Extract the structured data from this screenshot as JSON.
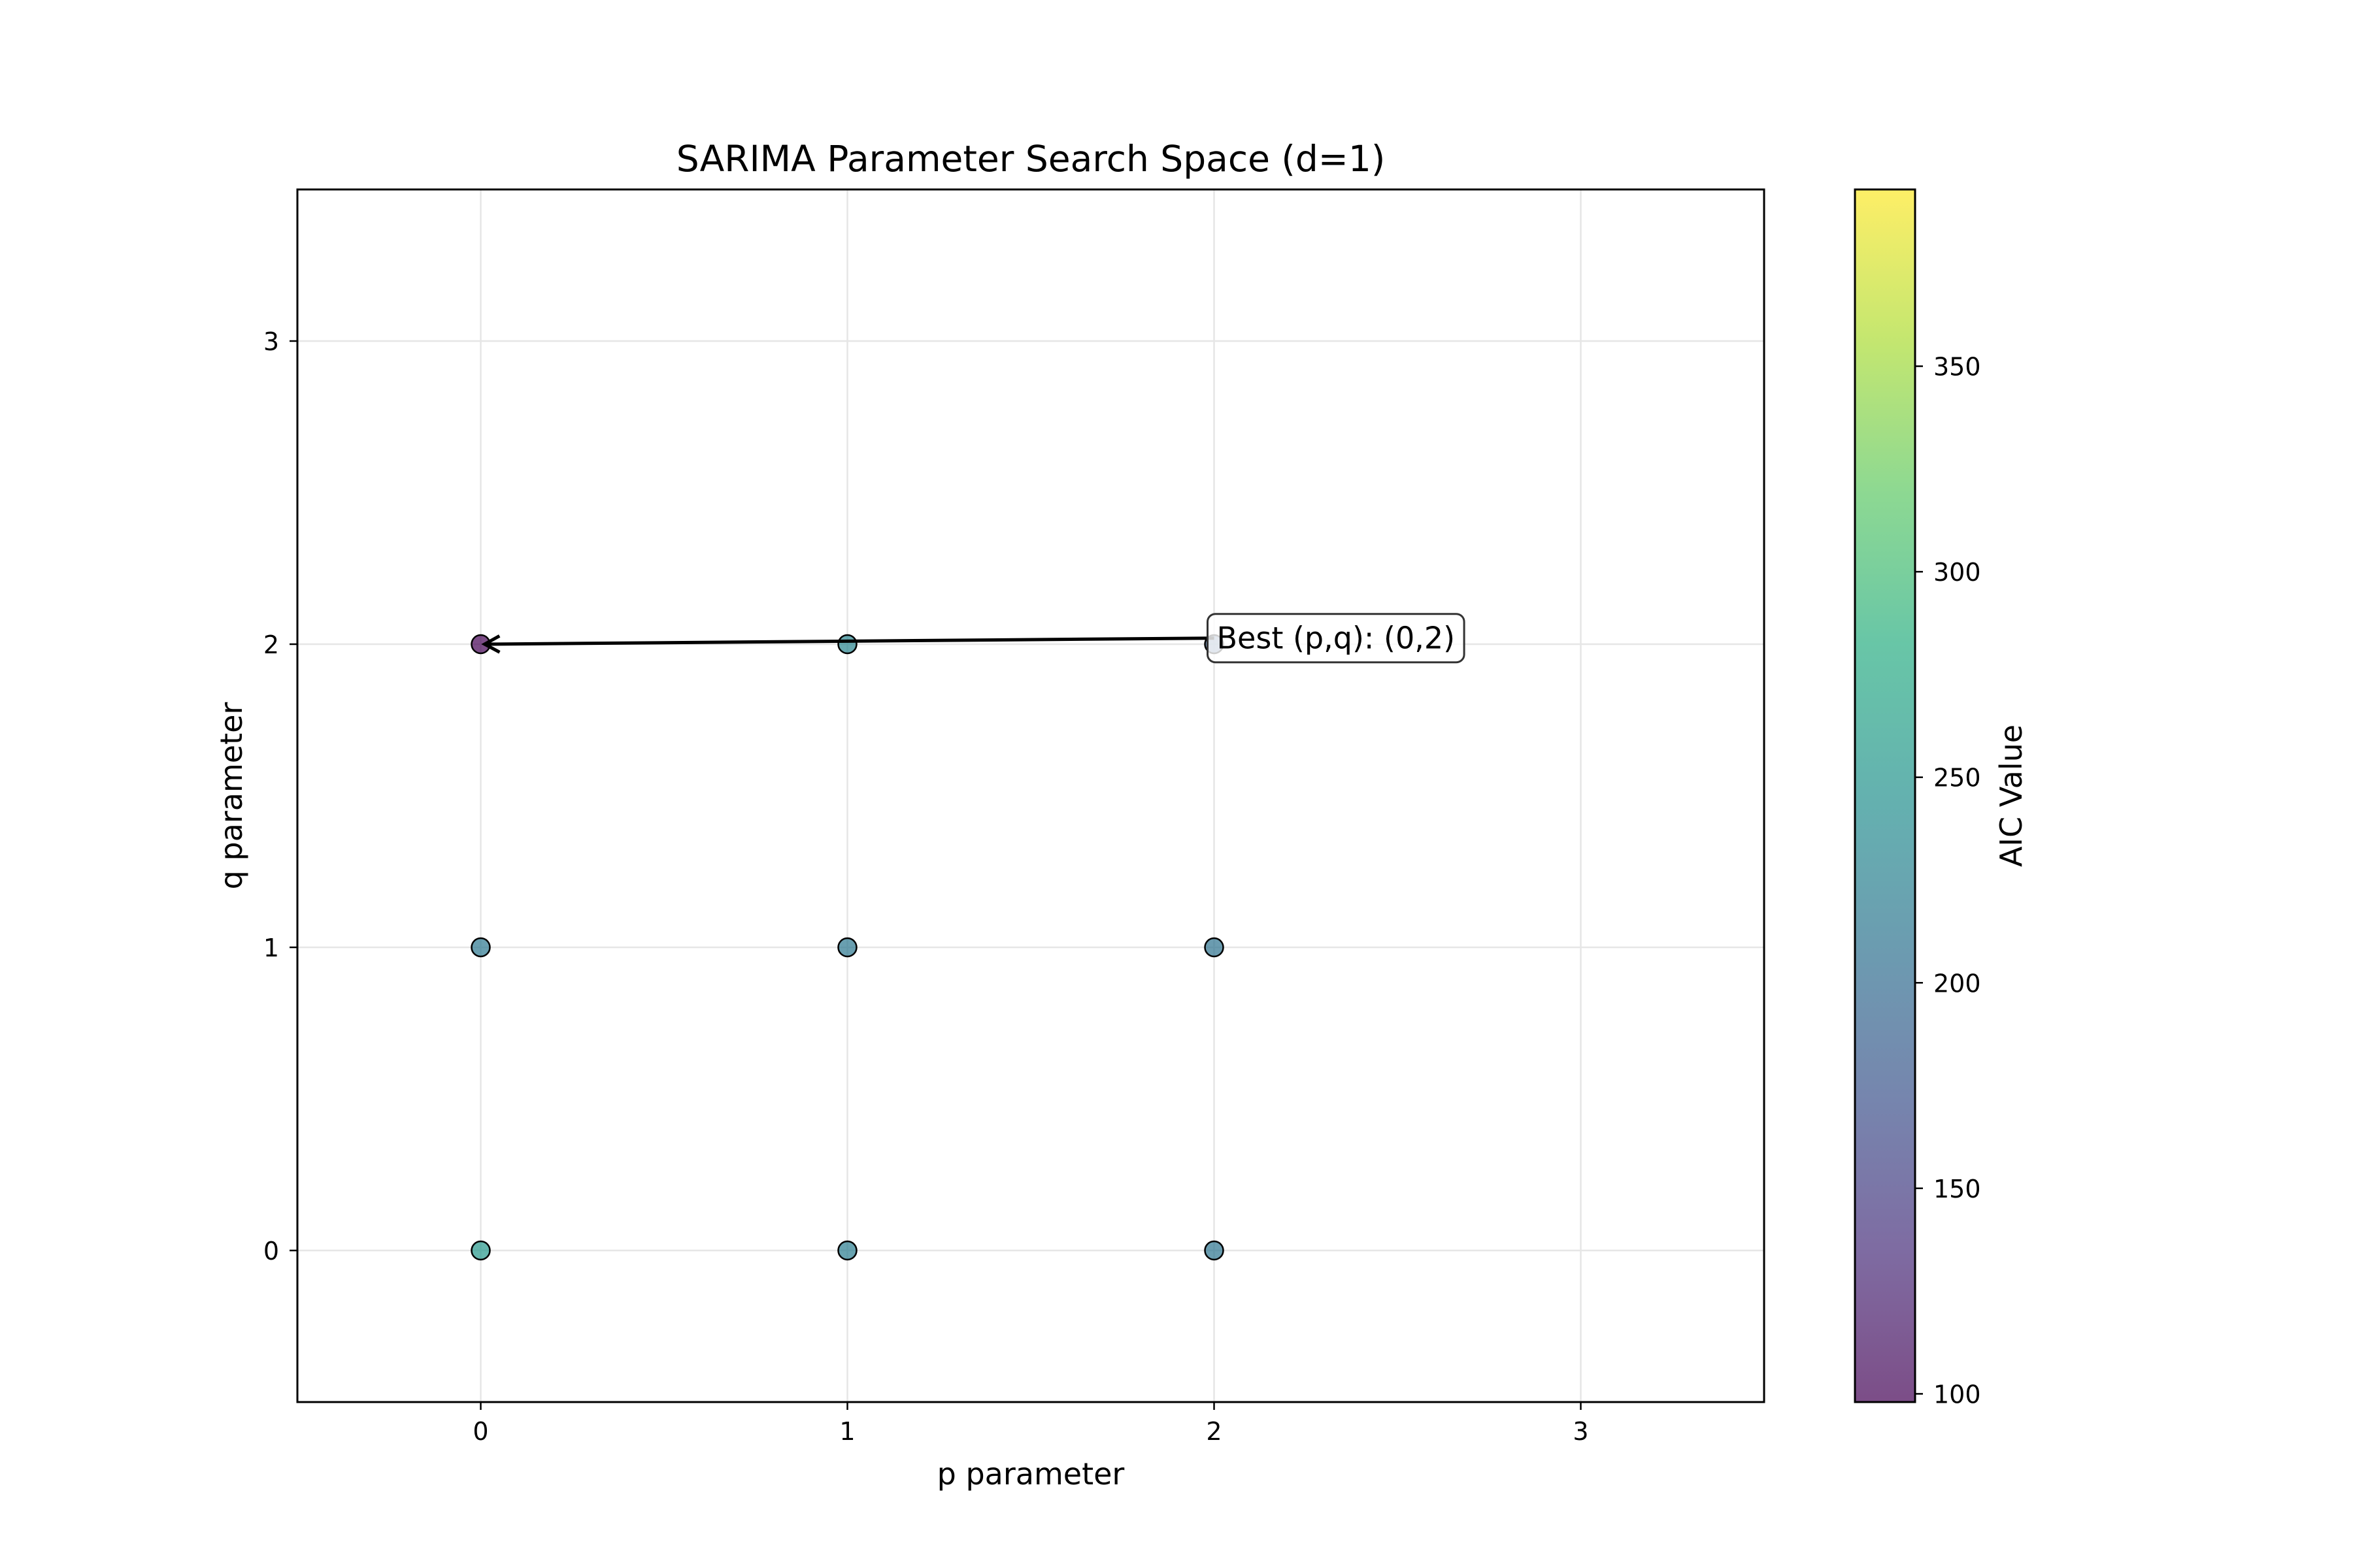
{
  "chart_data": {
    "type": "scatter",
    "title": "SARIMA Parameter Search Space (d=1)",
    "xlabel": "p parameter",
    "ylabel": "q parameter",
    "xlim": [
      -0.5,
      3.5
    ],
    "ylim": [
      -0.5,
      3.5
    ],
    "xticks": [
      "0",
      "1",
      "2",
      "3"
    ],
    "yticks": [
      "0",
      "1",
      "2",
      "3"
    ],
    "grid": true,
    "points": [
      {
        "p": 0,
        "q": 0,
        "aic": 255
      },
      {
        "p": 1,
        "q": 0,
        "aic": 222
      },
      {
        "p": 2,
        "q": 0,
        "aic": 212
      },
      {
        "p": 0,
        "q": 1,
        "aic": 215
      },
      {
        "p": 1,
        "q": 1,
        "aic": 215
      },
      {
        "p": 2,
        "q": 1,
        "aic": 210
      },
      {
        "p": 0,
        "q": 2,
        "aic": 98
      },
      {
        "p": 1,
        "q": 2,
        "aic": 230
      },
      {
        "p": 2,
        "q": 2,
        "aic": 185
      }
    ],
    "colorbar": {
      "label": "AIC Value",
      "colormap": "viridis",
      "alpha": 0.7,
      "range": [
        98,
        393
      ],
      "ticks": [
        "100",
        "150",
        "200",
        "250",
        "300",
        "350"
      ]
    },
    "annotation": {
      "text": "Best (p,q): (0,2)",
      "target": {
        "p": 0,
        "q": 2
      },
      "anchor": {
        "p": 2,
        "q": 2.02
      }
    },
    "colors": {
      "grid": "#e6e6e6",
      "axis": "#000000",
      "marker_edge": "#000000"
    }
  }
}
